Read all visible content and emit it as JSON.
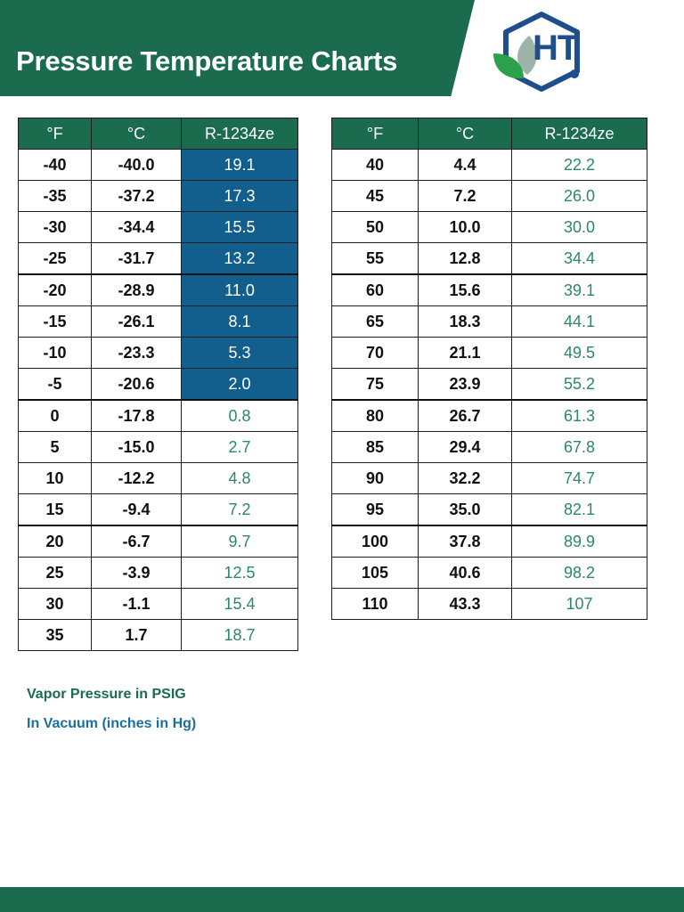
{
  "header": {
    "title": "Pressure Temperature Charts"
  },
  "logo": {
    "text": "HT"
  },
  "colors": {
    "brand_green": "#1b6b4e",
    "vacuum_blue": "#125f8e",
    "pressure_text_green": "#2c8a5e",
    "vacuum_legend_blue": "#1a6ea0"
  },
  "tables": {
    "left": {
      "headers": [
        "°F",
        "°C",
        "R-1234ze"
      ],
      "rows": [
        {
          "f": "-40",
          "c": "-40.0",
          "p": "19.1",
          "vacuum": true
        },
        {
          "f": "-35",
          "c": "-37.2",
          "p": "17.3",
          "vacuum": true
        },
        {
          "f": "-30",
          "c": "-34.4",
          "p": "15.5",
          "vacuum": true
        },
        {
          "f": "-25",
          "c": "-31.7",
          "p": "13.2",
          "vacuum": true
        },
        {
          "f": "-20",
          "c": "-28.9",
          "p": "11.0",
          "vacuum": true
        },
        {
          "f": "-15",
          "c": "-26.1",
          "p": "8.1",
          "vacuum": true
        },
        {
          "f": "-10",
          "c": "-23.3",
          "p": "5.3",
          "vacuum": true
        },
        {
          "f": "-5",
          "c": "-20.6",
          "p": "2.0",
          "vacuum": true
        },
        {
          "f": "0",
          "c": "-17.8",
          "p": "0.8",
          "vacuum": false
        },
        {
          "f": "5",
          "c": "-15.0",
          "p": "2.7",
          "vacuum": false
        },
        {
          "f": "10",
          "c": "-12.2",
          "p": "4.8",
          "vacuum": false
        },
        {
          "f": "15",
          "c": "-9.4",
          "p": "7.2",
          "vacuum": false
        },
        {
          "f": "20",
          "c": "-6.7",
          "p": "9.7",
          "vacuum": false
        },
        {
          "f": "25",
          "c": "-3.9",
          "p": "12.5",
          "vacuum": false
        },
        {
          "f": "30",
          "c": "-1.1",
          "p": "15.4",
          "vacuum": false
        },
        {
          "f": "35",
          "c": "1.7",
          "p": "18.7",
          "vacuum": false
        }
      ]
    },
    "right": {
      "headers": [
        "°F",
        "°C",
        "R-1234ze"
      ],
      "rows": [
        {
          "f": "40",
          "c": "4.4",
          "p": "22.2",
          "vacuum": false
        },
        {
          "f": "45",
          "c": "7.2",
          "p": "26.0",
          "vacuum": false
        },
        {
          "f": "50",
          "c": "10.0",
          "p": "30.0",
          "vacuum": false
        },
        {
          "f": "55",
          "c": "12.8",
          "p": "34.4",
          "vacuum": false
        },
        {
          "f": "60",
          "c": "15.6",
          "p": "39.1",
          "vacuum": false
        },
        {
          "f": "65",
          "c": "18.3",
          "p": "44.1",
          "vacuum": false
        },
        {
          "f": "70",
          "c": "21.1",
          "p": "49.5",
          "vacuum": false
        },
        {
          "f": "75",
          "c": "23.9",
          "p": "55.2",
          "vacuum": false
        },
        {
          "f": "80",
          "c": "26.7",
          "p": "61.3",
          "vacuum": false
        },
        {
          "f": "85",
          "c": "29.4",
          "p": "67.8",
          "vacuum": false
        },
        {
          "f": "90",
          "c": "32.2",
          "p": "74.7",
          "vacuum": false
        },
        {
          "f": "95",
          "c": "35.0",
          "p": "82.1",
          "vacuum": false
        },
        {
          "f": "100",
          "c": "37.8",
          "p": "89.9",
          "vacuum": false
        },
        {
          "f": "105",
          "c": "40.6",
          "p": "98.2",
          "vacuum": false
        },
        {
          "f": "110",
          "c": "43.3",
          "p": "107",
          "vacuum": false
        }
      ]
    }
  },
  "legend": {
    "psig": "Vapor Pressure in PSIG",
    "vacuum": "In Vacuum (inches in Hg)"
  }
}
